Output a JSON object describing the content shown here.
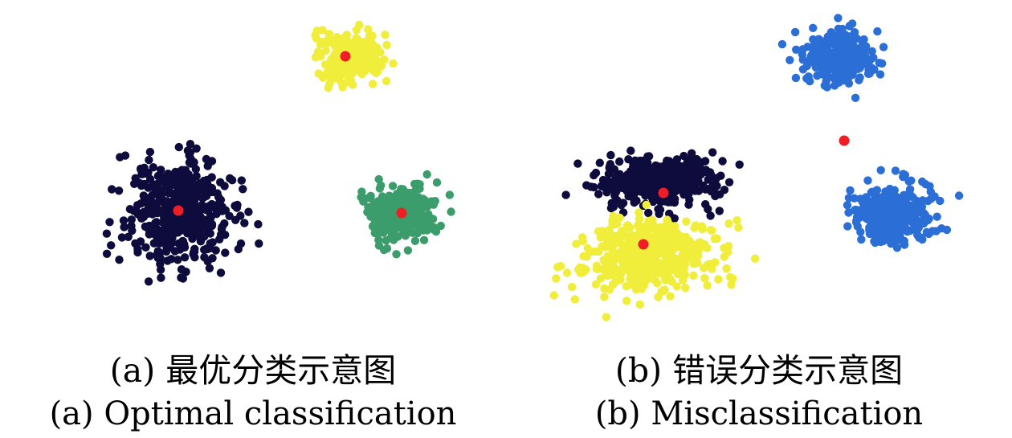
{
  "chart_data": [
    {
      "type": "scatter",
      "caption_zh": "(a) 最优分类示意图",
      "caption_en": "(a) Optimal classification",
      "series": [
        {
          "color": "#0e0b3d",
          "count": 480,
          "center": [
            222,
            262
          ],
          "spread": [
            62,
            58
          ]
        },
        {
          "color": "#f0ee3a",
          "count": 300,
          "center": [
            435,
            72
          ],
          "spread": [
            34,
            26
          ]
        },
        {
          "color": "#3c9d6c",
          "count": 330,
          "center": [
            498,
            265
          ],
          "spread": [
            36,
            30
          ]
        }
      ],
      "centroids": [
        [
          222,
          262
        ],
        [
          430,
          70
        ],
        [
          500,
          265
        ]
      ],
      "centroid_color": "#f01e24"
    },
    {
      "type": "scatter",
      "caption_zh": "(b) 错误分类示意图",
      "caption_en": "(b) Misclassification",
      "series": [
        {
          "color": "#0e0b3d",
          "count": 420,
          "center": [
            822,
            225
          ],
          "spread": [
            68,
            30
          ]
        },
        {
          "color": "#f0ee3a",
          "count": 440,
          "center": [
            806,
            318
          ],
          "spread": [
            78,
            40
          ]
        },
        {
          "color": "#2b6fd6",
          "count": 300,
          "center": [
            1050,
            70
          ],
          "spread": [
            40,
            28
          ]
        },
        {
          "color": "#2b6fd6",
          "count": 320,
          "center": [
            1112,
            266
          ],
          "spread": [
            44,
            32
          ]
        }
      ],
      "centroids": [
        [
          826,
          240
        ],
        [
          801,
          304
        ],
        [
          1051,
          175
        ]
      ],
      "centroid_color": "#f01e24"
    }
  ]
}
